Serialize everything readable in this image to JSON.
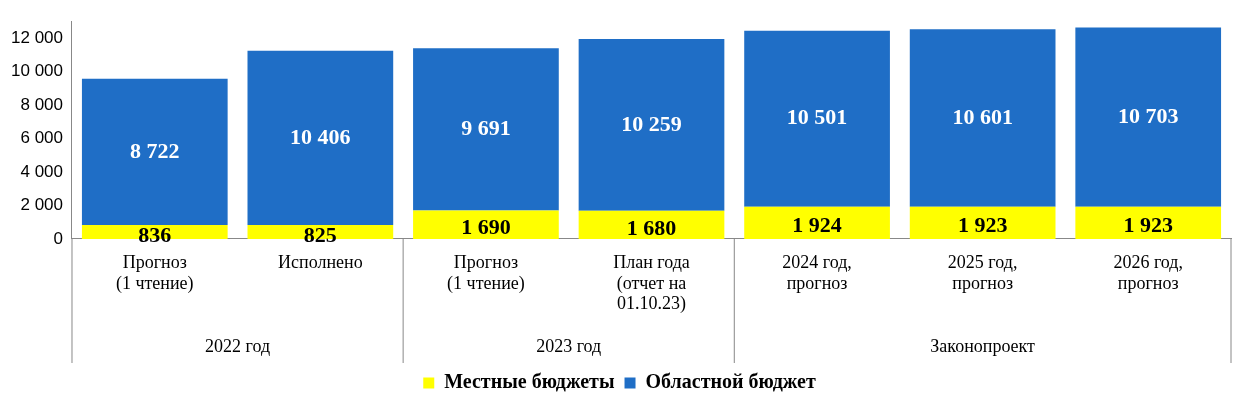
{
  "chart_data": {
    "type": "bar",
    "stacked": true,
    "categories": [
      "Прогноз\n(1 чтение)",
      "Исполнено",
      "Прогноз\n(1 чтение)",
      "План года\n(отчет на\n01.10.23)",
      "2024 год,\nпрогноз",
      "2025 год,\nпрогноз",
      "2026 год,\nпрогноз"
    ],
    "series": [
      {
        "name": "Местные бюджеты",
        "color": "#ffff00",
        "values": [
          836,
          825,
          1690,
          1680,
          1924,
          1923,
          1923
        ]
      },
      {
        "name": "Областной бюджет",
        "color": "#1f6ec6",
        "values": [
          8722,
          10406,
          9691,
          10259,
          10501,
          10601,
          10703
        ]
      }
    ],
    "ylim": [
      0,
      13000
    ],
    "yticks": [
      0,
      {
        "value": 2000,
        "label": "2 000"
      },
      {
        "value": 4000,
        "label": "4 000"
      },
      {
        "value": 6000,
        "label": "6 000"
      },
      {
        "value": 8000,
        "label": "8 000"
      },
      {
        "value": 10000,
        "label": "10 000"
      },
      {
        "value": 12000,
        "label": "12 000"
      }
    ],
    "annotations": [
      "2022 год",
      "2023 год",
      "Законопроект"
    ],
    "data_labels": true,
    "grid": false,
    "legend": "bottom"
  }
}
